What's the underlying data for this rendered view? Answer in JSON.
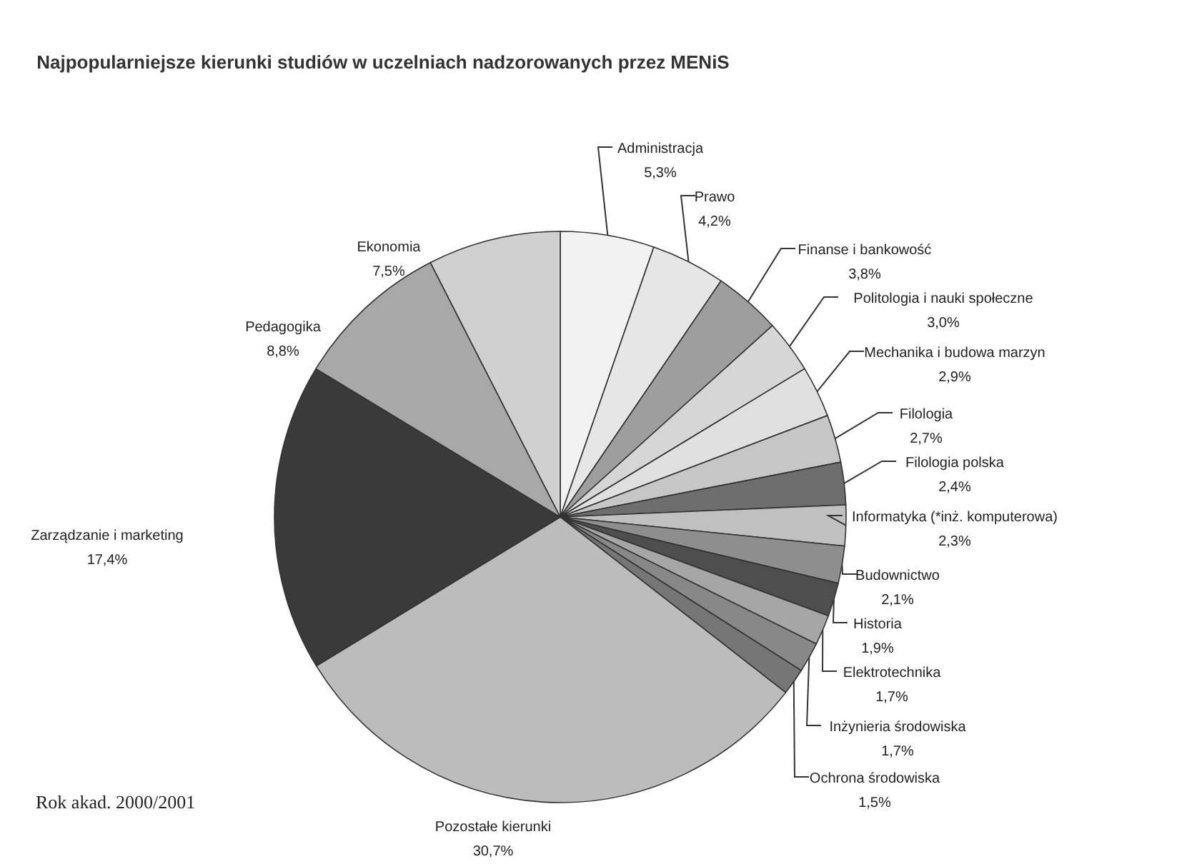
{
  "chart_data": {
    "type": "pie",
    "title": "Najpopularniejsze kierunki studiów w uczelniach nadzorowanych przez MENiS",
    "categories": [
      "Administracja",
      "Prawo",
      "Finanse i bankowość",
      "Politologia i nauki społeczne",
      "Mechanika i budowa marzyn",
      "Filologia",
      "Filologia polska",
      "Informatyka (*inż. komputerowa)",
      "Budownictwo",
      "Historia",
      "Elektrotechnika",
      "Inżynieria środowiska",
      "Ochrona środowiska",
      "Pozostałe kierunki",
      "Zarządzanie i marketing",
      "Pedagogika",
      "Ekonomia"
    ],
    "values": [
      5.3,
      4.2,
      3.8,
      3.0,
      2.9,
      2.7,
      2.4,
      2.3,
      2.1,
      1.9,
      1.7,
      1.7,
      1.5,
      30.7,
      17.4,
      8.8,
      7.5
    ],
    "value_labels": [
      "5,3%",
      "4,2%",
      "3,8%",
      "3,0%",
      "2,9%",
      "2,7%",
      "2,4%",
      "2,3%",
      "2,1%",
      "1,9%",
      "1,7%",
      "1,7%",
      "1,5%",
      "30,7%",
      "17,4%",
      "8,8%",
      "7,5%"
    ],
    "colors": [
      "#f2f2f2",
      "#e6e6e6",
      "#9e9e9e",
      "#d6d6d6",
      "#e0e0e0",
      "#c6c6c6",
      "#6e6e6e",
      "#c0c0c0",
      "#8e8e8e",
      "#4e4e4e",
      "#a6a6a6",
      "#888888",
      "#767676",
      "#bcbcbc",
      "#3a3a3a",
      "#a8a8a8",
      "#d0d0d0"
    ],
    "annotations": [
      "Rok akad. 2000/2001"
    ]
  }
}
